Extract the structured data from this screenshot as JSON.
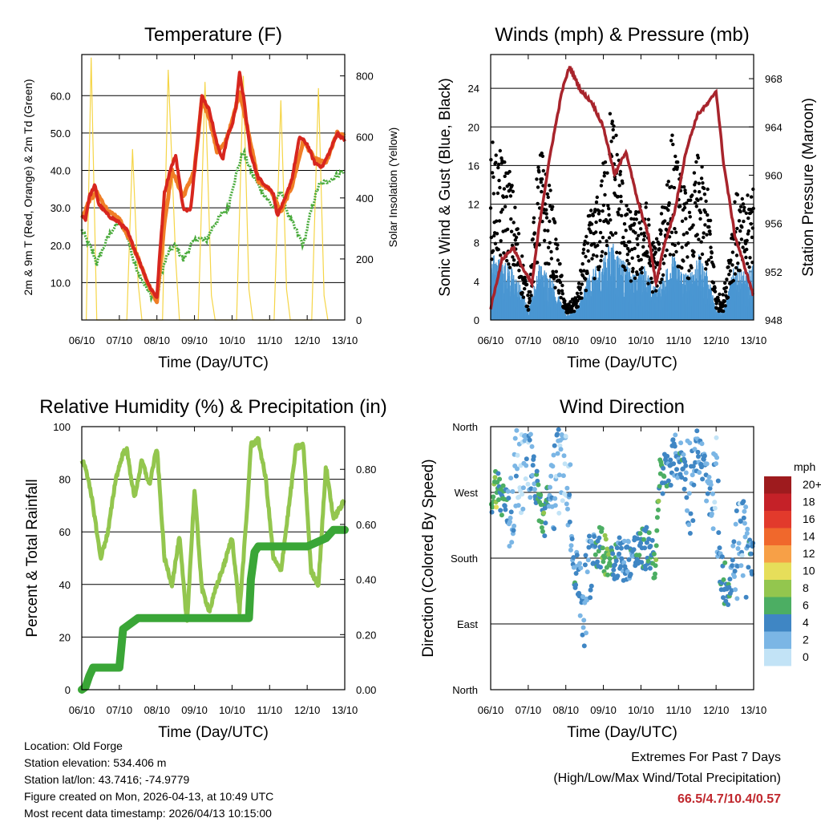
{
  "chart_data": [
    {
      "type": "line",
      "title": "Temperature (F)",
      "xlabel": "Time (Day/UTC)",
      "ylabel": "2m & 9m T (Red, Orange) & 2m Td (Green)",
      "y2label": "Solar Insolation (Yellow)",
      "x_ticks": [
        "06/10",
        "07/10",
        "08/10",
        "09/10",
        "10/10",
        "11/10",
        "12/10",
        "13/10"
      ],
      "ylim": [
        0,
        71
      ],
      "y_ticks": [
        "10.0",
        "20.0",
        "30.0",
        "40.0",
        "50.0",
        "60.0"
      ],
      "y2lim": [
        0,
        870
      ],
      "y2_ticks": [
        "0",
        "200",
        "400",
        "600",
        "800"
      ],
      "series": [
        {
          "name": "2m T",
          "color": "#d7261e",
          "x": [
            0,
            0.1,
            0.2,
            0.35,
            0.45,
            0.7,
            1,
            1.2,
            1.4,
            1.6,
            1.8,
            2,
            2.05,
            2.2,
            2.35,
            2.5,
            2.7,
            2.8,
            2.9,
            3.05,
            3.2,
            3.4,
            3.6,
            3.75,
            3.9,
            4,
            4.1,
            4.2,
            4.3,
            4.5,
            4.7,
            4.9,
            5,
            5.1,
            5.2,
            5.4,
            5.6,
            5.8,
            6,
            6.2,
            6.4,
            6.6,
            6.8,
            7
          ],
          "values": [
            28,
            27,
            33,
            36,
            31,
            28,
            26,
            24,
            19,
            14,
            9,
            6,
            14,
            34,
            40,
            44,
            30,
            29,
            30,
            45,
            60,
            56,
            47,
            43,
            50,
            52,
            57,
            66,
            60,
            44,
            38,
            36,
            35,
            34,
            28,
            32,
            38,
            49,
            47,
            42,
            41,
            45,
            50,
            48
          ]
        },
        {
          "name": "9m T",
          "color": "#f07e26",
          "x": [
            0,
            0.2,
            0.4,
            0.7,
            1,
            1.4,
            1.8,
            2,
            2.2,
            2.4,
            2.7,
            3,
            3.2,
            3.4,
            3.6,
            3.8,
            4,
            4.2,
            4.4,
            4.7,
            5,
            5.3,
            5.6,
            5.9,
            6.2,
            6.5,
            6.8,
            7
          ],
          "values": [
            27,
            32,
            34,
            29,
            27,
            19,
            9,
            5,
            26,
            40,
            33,
            40,
            59,
            54,
            45,
            47,
            53,
            61,
            52,
            37,
            35,
            29,
            36,
            48,
            43,
            42,
            50,
            49
          ]
        },
        {
          "name": "2m Td",
          "color": "#4aab3c",
          "x": [
            0,
            0.15,
            0.3,
            0.4,
            0.6,
            0.8,
            1,
            1.2,
            1.4,
            1.6,
            1.8,
            2,
            2.1,
            2.3,
            2.5,
            2.7,
            2.9,
            3.1,
            3.3,
            3.5,
            3.7,
            3.9,
            4,
            4.2,
            4.3,
            4.5,
            4.7,
            4.9,
            5.1,
            5.3,
            5.5,
            5.7,
            5.9,
            6.1,
            6.3,
            6.5,
            6.7,
            7
          ],
          "values": [
            24,
            21,
            18,
            15,
            20,
            24,
            26,
            23,
            15,
            11,
            7,
            5,
            12,
            18,
            20,
            16,
            20,
            22,
            21,
            25,
            28,
            30,
            35,
            42,
            45,
            40,
            36,
            33,
            30,
            35,
            28,
            24,
            20,
            29,
            36,
            37,
            38,
            40
          ]
        },
        {
          "name": "Solar Insolation",
          "axis": "y2",
          "color": "#f5d547",
          "x": [
            0.12,
            0.25,
            0.4,
            0.52,
            1.2,
            1.35,
            1.5,
            1.6,
            2.15,
            2.3,
            2.5,
            2.6,
            3.1,
            3.28,
            3.45,
            3.55,
            4.12,
            4.3,
            4.45,
            4.55,
            5.12,
            5.3,
            5.45,
            5.55,
            6.12,
            6.3,
            6.45,
            6.55
          ],
          "values": [
            0,
            860,
            0,
            0,
            0,
            560,
            120,
            0,
            0,
            820,
            200,
            0,
            0,
            780,
            80,
            0,
            0,
            800,
            100,
            0,
            0,
            720,
            100,
            0,
            0,
            760,
            80,
            0
          ]
        }
      ]
    },
    {
      "type": "scatter",
      "title": "Winds (mph) & Pressure (mb)",
      "xlabel": "Time (Day/UTC)",
      "ylabel": "Sonic Wind & Gust (Blue, Black)",
      "y2label": "Station Pressure (Maroon)",
      "x_ticks": [
        "06/10",
        "07/10",
        "08/10",
        "09/10",
        "10/10",
        "11/10",
        "12/10",
        "13/10"
      ],
      "ylim": [
        0,
        27.5
      ],
      "y_ticks": [
        "0",
        "4",
        "8",
        "12",
        "16",
        "20",
        "24"
      ],
      "y2lim": [
        948,
        970
      ],
      "y2_ticks": [
        "948",
        "952",
        "956",
        "960",
        "964",
        "968"
      ],
      "series": [
        {
          "name": "Gust",
          "color": "#000000",
          "x": [
            0,
            0.5,
            0.8,
            1,
            1.3,
            1.6,
            2,
            2.3,
            2.6,
            2.9,
            3.2,
            3.4,
            3.6,
            3.8,
            4.1,
            4.3,
            4.5,
            4.8,
            5,
            5.3,
            5.5,
            5.8,
            6,
            6.2,
            6.5,
            6.8,
            7
          ],
          "values": [
            14,
            12,
            6,
            2,
            14,
            10,
            1,
            2,
            8,
            10,
            17,
            14,
            9,
            8,
            10,
            6,
            7,
            15,
            12,
            9,
            13,
            10,
            2,
            2,
            10,
            9,
            12
          ]
        },
        {
          "name": "Wind",
          "color": "#4a96d2",
          "x": [
            0,
            0.5,
            0.8,
            1,
            1.3,
            1.6,
            2,
            2.3,
            2.6,
            2.9,
            3.2,
            3.4,
            3.6,
            3.8,
            4.1,
            4.3,
            4.5,
            4.8,
            5,
            5.3,
            5.5,
            5.8,
            6,
            6.2,
            6.5,
            6.8,
            7
          ],
          "values": [
            6,
            5,
            3,
            1,
            5,
            4,
            0.5,
            1,
            4,
            5,
            7,
            6,
            5,
            4,
            5,
            3,
            3,
            6,
            5,
            4,
            6,
            4,
            1,
            1,
            5,
            4,
            5
          ]
        },
        {
          "name": "Station Pressure",
          "axis": "y2",
          "color": "#a8242c",
          "x": [
            0,
            0.3,
            0.6,
            0.9,
            1.1,
            1.3,
            1.6,
            1.9,
            2.1,
            2.4,
            2.7,
            3,
            3.3,
            3.6,
            3.9,
            4.2,
            4.4,
            4.6,
            4.9,
            5.2,
            5.5,
            5.8,
            6,
            6.2,
            6.5,
            6.8,
            7
          ],
          "values": [
            949,
            953,
            954,
            952,
            951,
            956,
            962,
            967,
            969,
            967,
            966,
            964,
            960,
            962,
            958,
            955,
            951,
            954,
            957,
            962,
            965,
            966,
            967,
            961,
            955,
            952,
            950
          ]
        }
      ]
    },
    {
      "type": "line",
      "title": "Relative Humidity (%) & Precipitation (in)",
      "xlabel": "Time (Day/UTC)",
      "ylabel": "Percent & Total Rainfall",
      "x_ticks": [
        "06/10",
        "07/10",
        "08/10",
        "09/10",
        "10/10",
        "11/10",
        "12/10",
        "13/10"
      ],
      "ylim": [
        0,
        100
      ],
      "y_ticks": [
        "0",
        "20",
        "40",
        "60",
        "80",
        "100"
      ],
      "y2lim": [
        0,
        0.955
      ],
      "y2_ticks": [
        "0.00",
        "0.20",
        "0.40",
        "0.60",
        "0.80"
      ],
      "series": [
        {
          "name": "Relative Humidity",
          "color": "#93c64e",
          "x": [
            0,
            0.1,
            0.3,
            0.5,
            0.7,
            0.9,
            1.1,
            1.2,
            1.4,
            1.6,
            1.8,
            2,
            2.2,
            2.4,
            2.6,
            2.8,
            3,
            3.2,
            3.4,
            3.6,
            3.8,
            4,
            4.2,
            4.4,
            4.5,
            4.7,
            4.9,
            5.1,
            5.3,
            5.5,
            5.7,
            5.9,
            6.1,
            6.3,
            6.5,
            6.7,
            7
          ],
          "values": [
            87,
            85,
            70,
            50,
            60,
            80,
            90,
            91,
            73,
            87,
            78,
            92,
            50,
            40,
            58,
            25,
            76,
            38,
            30,
            40,
            48,
            58,
            30,
            68,
            93,
            95,
            80,
            50,
            45,
            68,
            92,
            93,
            45,
            40,
            85,
            65,
            72
          ]
        },
        {
          "name": "Total Precipitation",
          "axis": "y2",
          "color": "#3aa637",
          "x": [
            0,
            0.1,
            0.2,
            0.3,
            1,
            1.05,
            1.1,
            1.3,
            1.5,
            2,
            3,
            4,
            4.45,
            4.5,
            4.6,
            4.7,
            5,
            6,
            6.5,
            6.7,
            7
          ],
          "values": [
            0,
            0.01,
            0.05,
            0.08,
            0.08,
            0.15,
            0.22,
            0.24,
            0.26,
            0.26,
            0.26,
            0.26,
            0.26,
            0.4,
            0.5,
            0.52,
            0.52,
            0.52,
            0.55,
            0.58,
            0.58
          ]
        }
      ]
    },
    {
      "type": "scatter",
      "title": "Wind Direction",
      "xlabel": "Time (Day/UTC)",
      "ylabel": "Direction (Colored By Speed)",
      "x_ticks": [
        "06/10",
        "07/10",
        "08/10",
        "09/10",
        "10/10",
        "11/10",
        "12/10",
        "13/10"
      ],
      "y_ticks": [
        "North",
        "East",
        "South",
        "West",
        "North"
      ],
      "ylim": [
        0,
        360
      ],
      "colorbar": {
        "title": "mph",
        "labels": [
          "20+",
          "18",
          "16",
          "14",
          "12",
          "10",
          "8",
          "6",
          "4",
          "2",
          "0"
        ],
        "colors": [
          "#9e1b1e",
          "#c52128",
          "#e23a2c",
          "#f0682c",
          "#f7a047",
          "#e6de5a",
          "#93c64e",
          "#4cae63",
          "#3f86c4",
          "#7bb6e5",
          "#c2e3f6"
        ]
      },
      "series": [
        {
          "name": "Direction",
          "x": [
            0.05,
            0.15,
            0.25,
            0.35,
            0.5,
            0.7,
            0.9,
            1,
            1.2,
            1.4,
            1.6,
            2,
            2.2,
            2.35,
            2.5,
            2.7,
            3,
            3.1,
            3.25,
            3.4,
            3.6,
            3.8,
            4,
            4.2,
            4.4,
            4.5,
            4.7,
            4.9,
            5.1,
            5.3,
            5.5,
            5.7,
            5.9,
            6,
            6.1,
            6.2,
            6.3,
            6.5,
            6.7,
            6.9
          ],
          "values": [
            270,
            280,
            265,
            260,
            240,
            300,
            320,
            350,
            280,
            230,
            270,
            340,
            170,
            150,
            110,
            200,
            190,
            185,
            180,
            182,
            178,
            185,
            190,
            195,
            175,
            290,
            300,
            320,
            310,
            280,
            330,
            300,
            240,
            300,
            160,
            150,
            140,
            180,
            200,
            185
          ],
          "speeds": [
            6,
            8,
            4,
            6,
            3,
            2,
            1,
            2,
            4,
            6,
            3,
            1,
            4,
            3,
            2,
            3,
            6,
            8,
            5,
            4,
            3,
            4,
            5,
            4,
            6,
            6,
            4,
            3,
            4,
            2,
            4,
            3,
            3,
            1,
            4,
            5,
            4,
            3,
            2,
            4
          ]
        }
      ]
    }
  ],
  "info": {
    "location": "Location: Old Forge",
    "elevation": "Station elevation: 534.406 m",
    "latlon": "Station lat/lon: 43.7416; -74.9779",
    "created": "Figure created on Mon, 2026-04-13, at 10:49 UTC",
    "recent": "Most recent data timestamp: 2026/04/13 10:15:00"
  },
  "extremes": {
    "title": "Extremes For Past 7 Days",
    "subtitle": "(High/Low/Max Wind/Total Precipitation)",
    "values": "66.5/4.7/10.4/0.57"
  }
}
